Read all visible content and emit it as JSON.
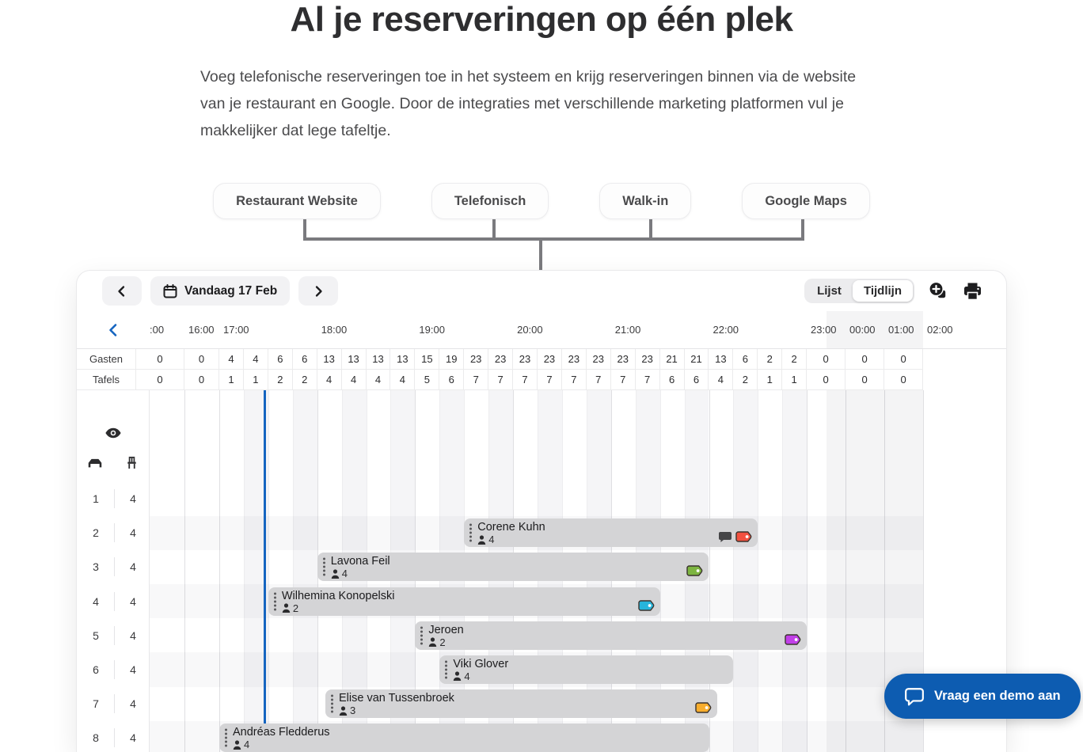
{
  "hero": {
    "title": "Al je reserveringen op één plek",
    "description": "Voeg telefonische reserveringen toe in het systeem en krijg reserveringen binnen via de website van je restaurant en Google. Door de integraties met verschillende marketing platformen vul je makkelijker dat lege tafeltje.",
    "sources": [
      "Restaurant Website",
      "Telefonisch",
      "Walk-in",
      "Google Maps"
    ]
  },
  "app": {
    "toolbar": {
      "date_label": "Vandaag 17 Feb",
      "view_toggle": {
        "options": [
          "Lijst",
          "Tijdlijn"
        ],
        "selected": "Tijdlijn"
      },
      "icon_buttons": [
        "add-reservation",
        "print"
      ]
    },
    "timeline": {
      "hour_labels": [
        ":00",
        "16:00",
        "17:00",
        "18:00",
        "19:00",
        "20:00",
        "21:00",
        "22:00",
        "23:00",
        "00:00",
        "01:00",
        "02:00"
      ],
      "stats": [
        {
          "label": "Gasten",
          "values": [
            0,
            0,
            4,
            4,
            6,
            6,
            13,
            13,
            13,
            13,
            15,
            19,
            23,
            23,
            23,
            23,
            23,
            23,
            23,
            23,
            21,
            21,
            13,
            6,
            2,
            2,
            0,
            0,
            0
          ]
        },
        {
          "label": "Tafels",
          "values": [
            0,
            0,
            1,
            1,
            2,
            2,
            4,
            4,
            4,
            4,
            5,
            6,
            7,
            7,
            7,
            7,
            7,
            7,
            7,
            7,
            6,
            6,
            4,
            2,
            1,
            1,
            0,
            0,
            0
          ]
        }
      ],
      "tables": [
        {
          "number": "1",
          "seats": "4"
        },
        {
          "number": "2",
          "seats": "4"
        },
        {
          "number": "3",
          "seats": "4"
        },
        {
          "number": "4",
          "seats": "4"
        },
        {
          "number": "5",
          "seats": "4"
        },
        {
          "number": "6",
          "seats": "4"
        },
        {
          "number": "7",
          "seats": "4"
        },
        {
          "number": "8",
          "seats": "4"
        }
      ],
      "current_time": "17:27",
      "closed_from": "23:30",
      "reservations": [
        {
          "name": "Corene Kuhn",
          "guests": "4",
          "table_row": 2,
          "start": "19:30",
          "end": "22:30",
          "icons": [
            "chat-icon",
            "tag-icon"
          ],
          "tag_color": "red"
        },
        {
          "name": "Lavona Feil",
          "guests": "4",
          "table_row": 3,
          "start": "18:00",
          "end": "22:00",
          "icons": [
            "tag-icon"
          ],
          "tag_color": "green"
        },
        {
          "name": "Wilhemina Konopelski",
          "guests": "2",
          "table_row": 4,
          "start": "17:30",
          "end": "21:30",
          "icons": [
            "tag-icon"
          ],
          "tag_color": "cyan"
        },
        {
          "name": "Jeroen",
          "guests": "2",
          "table_row": 5,
          "start": "19:00",
          "end": "23:00",
          "icons": [
            "tag-icon"
          ],
          "tag_color": "purple"
        },
        {
          "name": "Viki Glover",
          "guests": "4",
          "table_row": 6,
          "start": "19:15",
          "end": "22:15",
          "icons": [],
          "tag_color": null
        },
        {
          "name": "Elise van Tussenbroek",
          "guests": "3",
          "table_row": 7,
          "start": "18:05",
          "end": "22:05",
          "icons": [
            "tag-icon"
          ],
          "tag_color": "yellow"
        },
        {
          "name": "Andréas Fledderus",
          "guests": "4",
          "table_row": 8,
          "start": "17:00",
          "end": "22:00",
          "icons": [],
          "tag_color": null
        }
      ]
    }
  },
  "chat_widget": {
    "label": "Vraag een demo aan"
  },
  "colors": {
    "accent_blue": "#1565c0",
    "fab_blue": "#0d5cb1",
    "bar_gray": "#d4d4d6",
    "connector_gray": "#7a7a7e",
    "tag_colors": {
      "red": "#f2503f",
      "green": "#7db541",
      "cyan": "#27b5dc",
      "purple": "#c13fe8",
      "yellow": "#f7ad2d"
    }
  }
}
